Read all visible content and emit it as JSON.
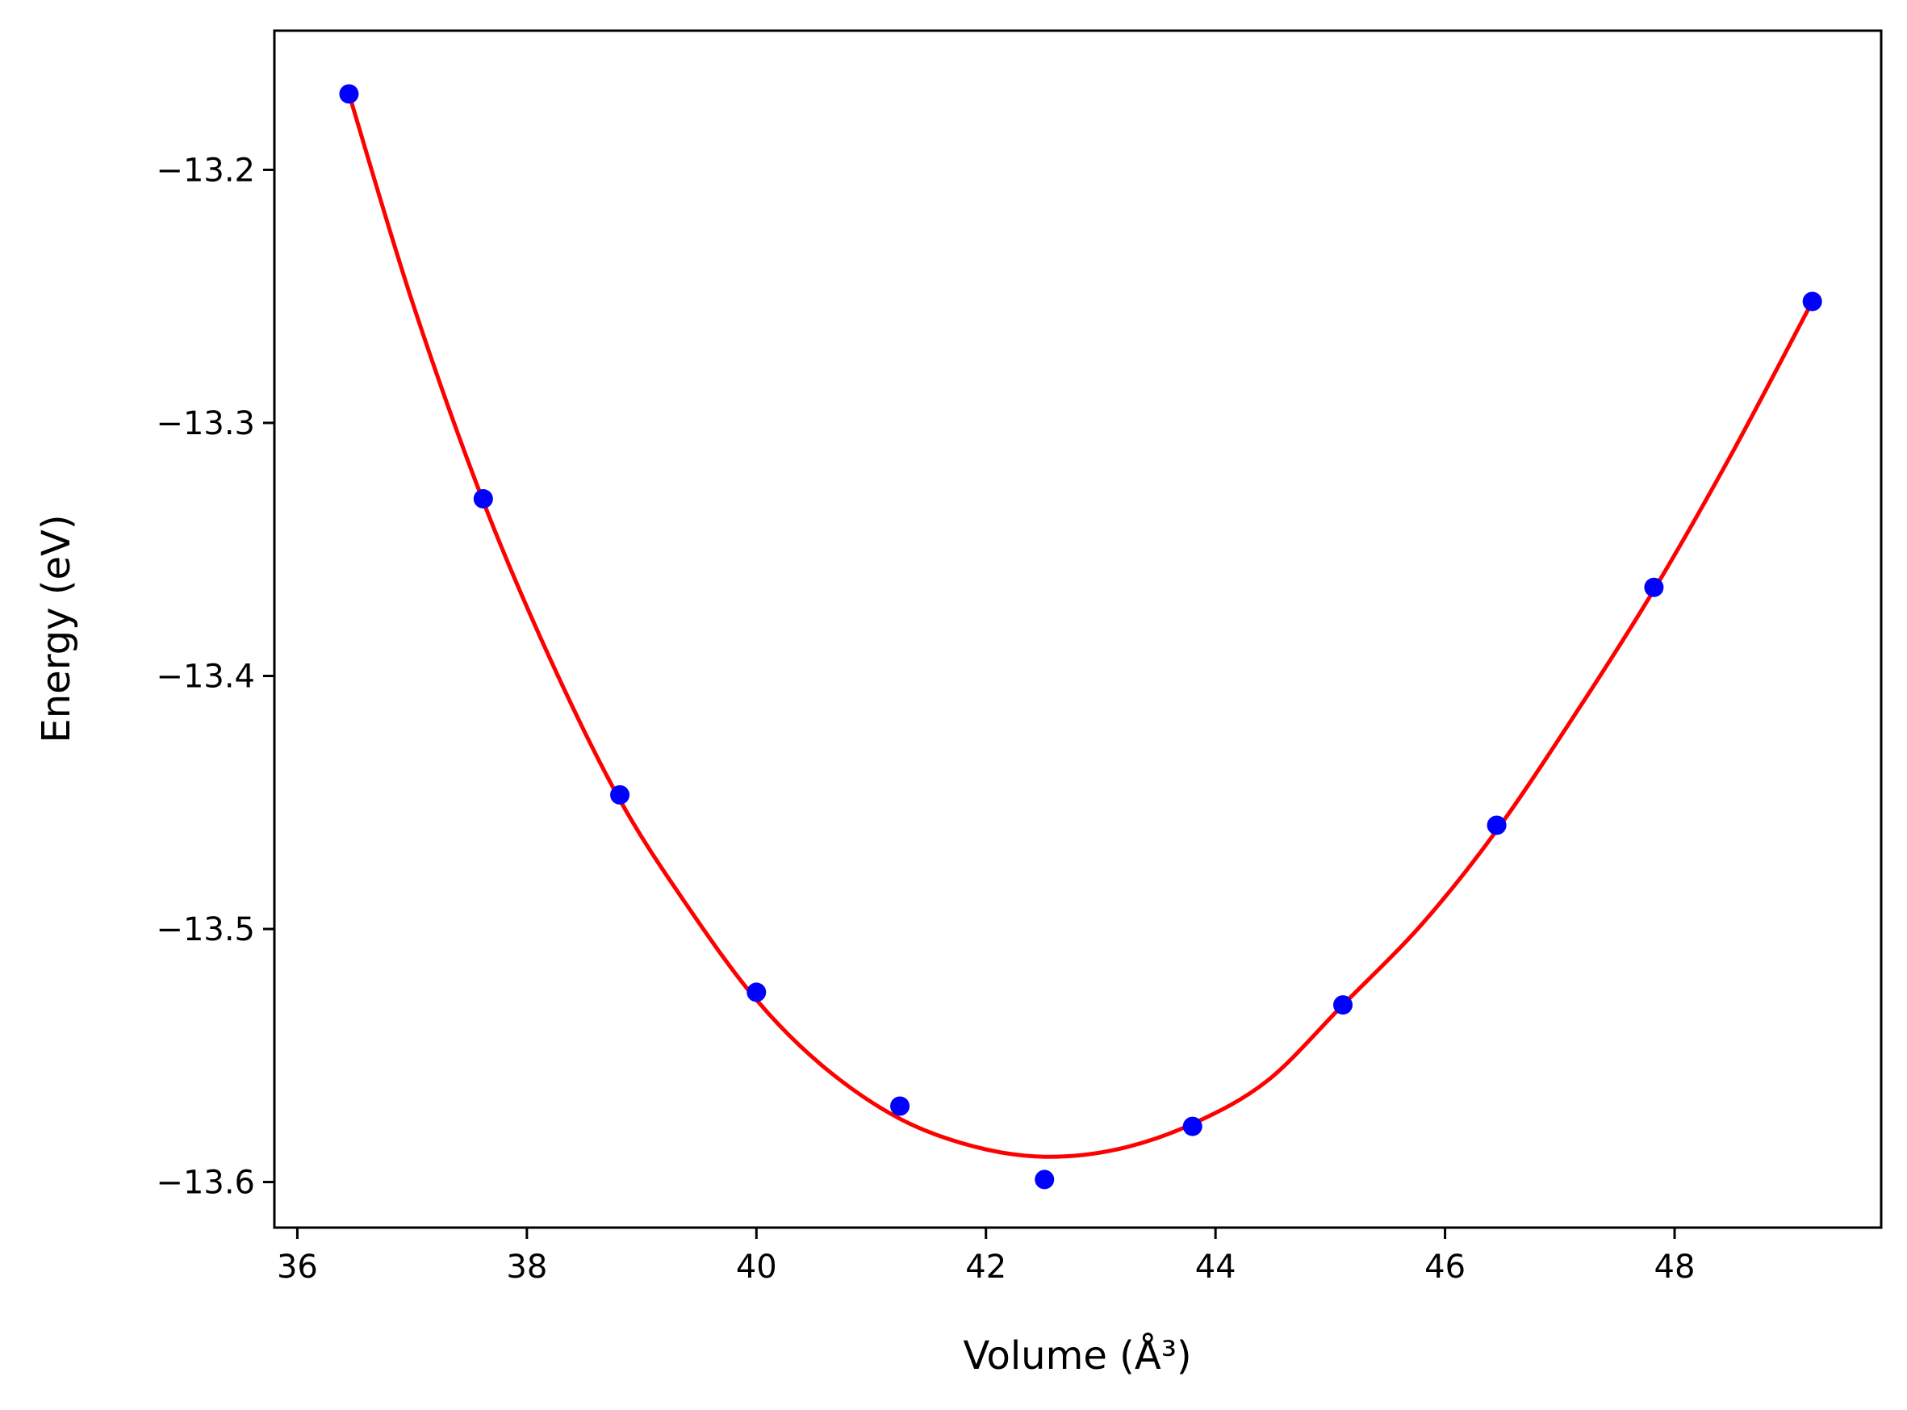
{
  "chart_data": {
    "type": "scatter",
    "xlabel": "Volume (Å³)",
    "ylabel": "Energy (eV)",
    "xlim": [
      35.8,
      49.8
    ],
    "ylim": [
      -13.618,
      -13.145
    ],
    "xticks": [
      36,
      38,
      40,
      42,
      44,
      46,
      48
    ],
    "yticks": [
      -13.2,
      -13.3,
      -13.4,
      -13.5,
      -13.6
    ],
    "grid": false,
    "legend": "none",
    "series": [
      {
        "kind": "points",
        "color": "#0000ff",
        "x": [
          36.45,
          37.62,
          38.81,
          40.0,
          41.25,
          42.51,
          43.8,
          45.11,
          46.45,
          47.82,
          49.2
        ],
        "y": [
          -13.17,
          -13.33,
          -13.447,
          -13.525,
          -13.57,
          -13.599,
          -13.578,
          -13.53,
          -13.459,
          -13.365,
          -13.252
        ]
      },
      {
        "kind": "fit-line",
        "color": "#ff0000",
        "x": [
          36.45,
          37.0,
          37.62,
          38.2,
          38.81,
          39.4,
          40.0,
          40.6,
          41.25,
          41.9,
          42.51,
          43.15,
          43.8,
          44.45,
          45.11,
          45.8,
          46.45,
          47.15,
          47.82,
          48.5,
          49.2
        ],
        "y": [
          -13.17,
          -13.252,
          -13.331,
          -13.393,
          -13.449,
          -13.491,
          -13.528,
          -13.555,
          -13.575,
          -13.586,
          -13.59,
          -13.587,
          -13.577,
          -13.56,
          -13.53,
          -13.498,
          -13.461,
          -13.414,
          -13.366,
          -13.312,
          -13.252
        ]
      }
    ]
  }
}
